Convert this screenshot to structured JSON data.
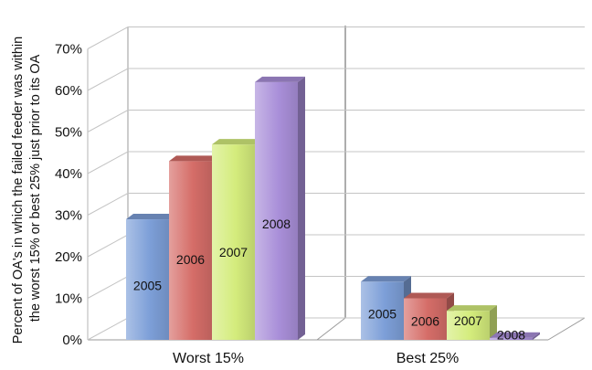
{
  "chart_data": {
    "type": "bar",
    "categories": [
      "Worst 15%",
      "Best 25%"
    ],
    "series": [
      {
        "name": "2005",
        "values": [
          29,
          14
        ],
        "color": "#7d9fd8"
      },
      {
        "name": "2006",
        "values": [
          43,
          10
        ],
        "color": "#d56d68"
      },
      {
        "name": "2007",
        "values": [
          47,
          7
        ],
        "color": "#d4ec7c"
      },
      {
        "name": "2008",
        "values": [
          62,
          0.5
        ],
        "color": "#a98fd9"
      }
    ],
    "ylabel_lines": [
      "Percent of OA's in which the failed feeder was within",
      "the worst 15% or best 25%  just prior to its OA"
    ],
    "ylim": [
      0,
      70
    ],
    "yticks": [
      "0%",
      "10%",
      "20%",
      "30%",
      "40%",
      "50%",
      "60%",
      "70%"
    ],
    "style": "3d-clustered-column",
    "grid": true,
    "data_labels": "series-name-on-bar"
  }
}
